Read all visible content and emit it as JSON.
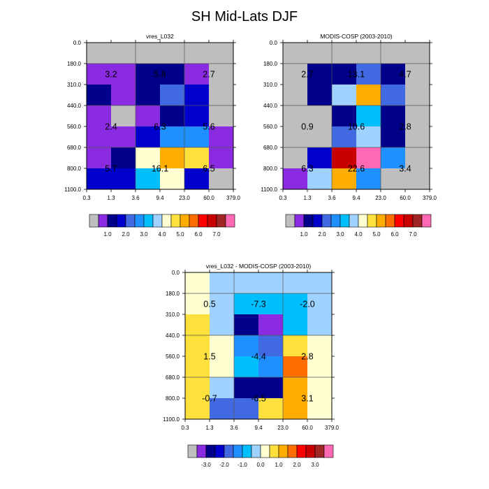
{
  "figure_title": "SH Mid-Lats DJF",
  "chart_data": [
    {
      "type": "heatmap",
      "title": "vres_L032",
      "x_ticks": [
        "0.3",
        "1.3",
        "3.6",
        "9.4",
        "23.0",
        "60.0",
        "379.0"
      ],
      "y_ticks": [
        "0.0",
        "180.0",
        "310.0",
        "440.0",
        "560.0",
        "680.0",
        "800.0",
        "1100.0"
      ],
      "grid": true,
      "cell_levels": [
        [
          0,
          0,
          0,
          0,
          0,
          0
        ],
        [
          1,
          1,
          2,
          2,
          1,
          0
        ],
        [
          2,
          1,
          2,
          4,
          3,
          0
        ],
        [
          1,
          0,
          1,
          2,
          3,
          0
        ],
        [
          1,
          1,
          3,
          5,
          5,
          1
        ],
        [
          1,
          2,
          8,
          10,
          9,
          1
        ],
        [
          3,
          3,
          6,
          8,
          3,
          0
        ]
      ],
      "annotations": [
        {
          "row": 1,
          "col": 0.5,
          "text": "3.2"
        },
        {
          "row": 1,
          "col": 2.5,
          "text": "5.8"
        },
        {
          "row": 1,
          "col": 4.5,
          "text": "2.7"
        },
        {
          "row": 3.5,
          "col": 0.5,
          "text": "2.4"
        },
        {
          "row": 3.5,
          "col": 2.5,
          "text": "6.3"
        },
        {
          "row": 3.5,
          "col": 4.5,
          "text": "5.6"
        },
        {
          "row": 5.5,
          "col": 0.5,
          "text": "5.7"
        },
        {
          "row": 5.5,
          "col": 2.5,
          "text": "16.1"
        },
        {
          "row": 5.5,
          "col": 4.5,
          "text": "6.5"
        }
      ],
      "colorbar": {
        "colors": [
          "#bebebe",
          "#8a2be2",
          "#00008b",
          "#0000cd",
          "#4169e1",
          "#1e90ff",
          "#00bfff",
          "#a0d2ff",
          "#ffffd1",
          "#ffe13d",
          "#ffad00",
          "#ff6e00",
          "#ff0000",
          "#c80000",
          "#a02525",
          "#ff69b4"
        ],
        "labels": [
          "1.0",
          "2.0",
          "3.0",
          "4.0",
          "5.0",
          "6.0",
          "7.0"
        ]
      }
    },
    {
      "type": "heatmap",
      "title": "MODIS-COSP (2003-2010)",
      "x_ticks": [
        "0.3",
        "1.3",
        "3.6",
        "9.4",
        "23.0",
        "60.0",
        "379.0"
      ],
      "y_ticks": [
        "0.0",
        "180.0",
        "310.0",
        "440.0",
        "560.0",
        "680.0",
        "800.0",
        "1100.0"
      ],
      "grid": true,
      "cell_levels": [
        [
          0,
          0,
          0,
          0,
          0,
          0
        ],
        [
          0,
          2,
          2,
          4,
          2,
          0
        ],
        [
          0,
          2,
          7,
          10,
          4,
          0
        ],
        [
          0,
          0,
          2,
          6,
          2,
          0
        ],
        [
          0,
          0,
          4,
          7,
          2,
          0
        ],
        [
          0,
          3,
          13,
          15,
          5,
          0
        ],
        [
          1,
          7,
          10,
          5,
          0,
          0
        ]
      ],
      "annotations": [
        {
          "row": 1,
          "col": 0.5,
          "text": "2.7"
        },
        {
          "row": 1,
          "col": 2.5,
          "text": "13.1"
        },
        {
          "row": 1,
          "col": 4.5,
          "text": "4.7"
        },
        {
          "row": 3.5,
          "col": 0.5,
          "text": "0.9"
        },
        {
          "row": 3.5,
          "col": 2.5,
          "text": "10.6"
        },
        {
          "row": 3.5,
          "col": 4.5,
          "text": "2.8"
        },
        {
          "row": 5.5,
          "col": 0.5,
          "text": "6.3"
        },
        {
          "row": 5.5,
          "col": 2.5,
          "text": "22.6"
        },
        {
          "row": 5.5,
          "col": 4.5,
          "text": "3.4"
        }
      ],
      "colorbar": {
        "colors": [
          "#bebebe",
          "#8a2be2",
          "#00008b",
          "#0000cd",
          "#4169e1",
          "#1e90ff",
          "#00bfff",
          "#a0d2ff",
          "#ffffd1",
          "#ffe13d",
          "#ffad00",
          "#ff6e00",
          "#ff0000",
          "#c80000",
          "#a02525",
          "#ff69b4"
        ],
        "labels": [
          "1.0",
          "2.0",
          "3.0",
          "4.0",
          "5.0",
          "6.0",
          "7.0"
        ]
      }
    },
    {
      "type": "heatmap",
      "title": "vres_L032 - MODIS-COSP (2003-2010)",
      "x_ticks": [
        "0.3",
        "1.3",
        "3.6",
        "9.4",
        "23.0",
        "60.0",
        "379.0"
      ],
      "y_ticks": [
        "0.0",
        "180.0",
        "310.0",
        "440.0",
        "560.0",
        "680.0",
        "800.0",
        "1100.0"
      ],
      "grid": true,
      "cell_levels": [
        [
          8,
          7,
          7,
          7,
          7,
          7
        ],
        [
          8,
          7,
          6,
          6,
          6,
          7
        ],
        [
          9,
          7,
          2,
          1,
          6,
          7
        ],
        [
          9,
          8,
          5,
          4,
          9,
          8
        ],
        [
          9,
          8,
          6,
          5,
          11,
          8
        ],
        [
          9,
          7,
          2,
          2,
          10,
          8
        ],
        [
          9,
          4,
          4,
          9,
          10,
          8
        ]
      ],
      "annotations": [
        {
          "row": 1,
          "col": 0.5,
          "text": "0.5"
        },
        {
          "row": 1,
          "col": 2.5,
          "text": "-7.3"
        },
        {
          "row": 1,
          "col": 4.5,
          "text": "-2.0"
        },
        {
          "row": 3.5,
          "col": 0.5,
          "text": "1.5"
        },
        {
          "row": 3.5,
          "col": 2.5,
          "text": "-4.4"
        },
        {
          "row": 3.5,
          "col": 4.5,
          "text": "2.8"
        },
        {
          "row": 5.5,
          "col": 0.5,
          "text": "-0.7"
        },
        {
          "row": 5.5,
          "col": 2.5,
          "text": "-6.5"
        },
        {
          "row": 5.5,
          "col": 4.5,
          "text": "3.1"
        }
      ],
      "colorbar": {
        "colors": [
          "#bebebe",
          "#8a2be2",
          "#00008b",
          "#0000cd",
          "#4169e1",
          "#1e90ff",
          "#00bfff",
          "#a0d2ff",
          "#ffffd1",
          "#ffe13d",
          "#ffad00",
          "#ff6e00",
          "#ff0000",
          "#c80000",
          "#a02525",
          "#ff69b4"
        ],
        "labels": [
          "-3.0",
          "-2.0",
          "-1.0",
          "0.0",
          "1.0",
          "2.0",
          "3.0"
        ]
      }
    }
  ]
}
